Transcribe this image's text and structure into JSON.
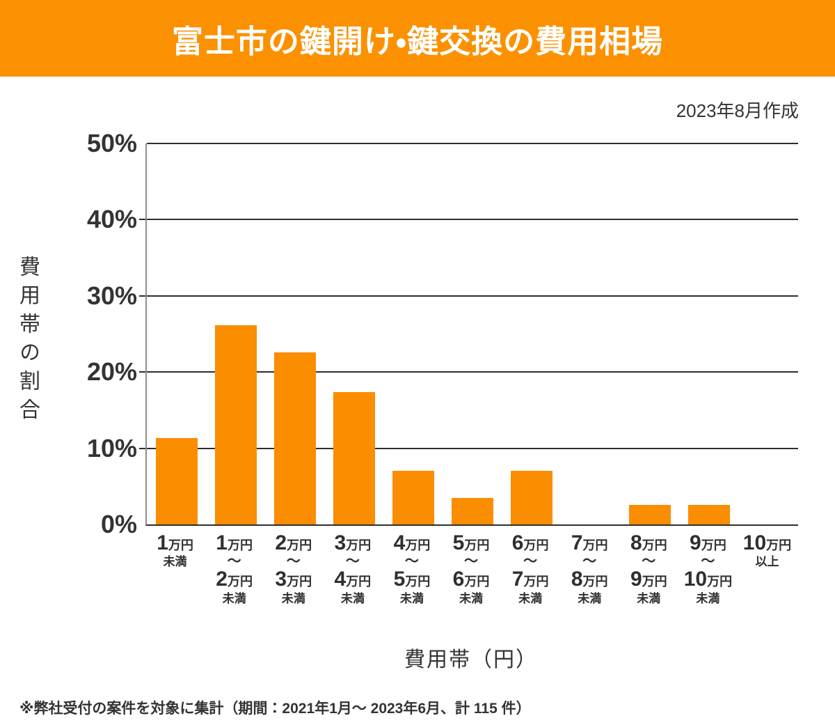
{
  "header": {
    "title": "富士市の鍵開け・鍵交換の費用相場",
    "bg_color": "#fb9100",
    "text_color": "#ffffff"
  },
  "date_note": "2023年8月作成",
  "footnote": "※弊社受付の案件を対象に集計（期間：2021年1月～ 2023年6月、計 115 件）",
  "chart_data": {
    "type": "bar",
    "title": "富士市の鍵開け・鍵交換の費用相場",
    "xlabel": "費用帯（円）",
    "ylabel": "費用帯の割合",
    "ylim": [
      0,
      50
    ],
    "yticks": [
      0,
      10,
      20,
      30,
      40,
      50
    ],
    "ytick_suffix": "%",
    "grid": true,
    "legend": false,
    "bar_color": "#fb8d00",
    "grid_color": "#2e2e2e",
    "axis_color": "#8f8f8f",
    "text_color": "#333333",
    "range_separator": "〜",
    "categories": [
      {
        "from": "1",
        "unit": "万円",
        "to": "",
        "qualifier": "未満"
      },
      {
        "from": "1",
        "unit": "万円",
        "to": "2",
        "qualifier": "未満"
      },
      {
        "from": "2",
        "unit": "万円",
        "to": "3",
        "qualifier": "未満"
      },
      {
        "from": "3",
        "unit": "万円",
        "to": "4",
        "qualifier": "未満"
      },
      {
        "from": "4",
        "unit": "万円",
        "to": "5",
        "qualifier": "未満"
      },
      {
        "from": "5",
        "unit": "万円",
        "to": "6",
        "qualifier": "未満"
      },
      {
        "from": "6",
        "unit": "万円",
        "to": "7",
        "qualifier": "未満"
      },
      {
        "from": "7",
        "unit": "万円",
        "to": "8",
        "qualifier": "未満"
      },
      {
        "from": "8",
        "unit": "万円",
        "to": "9",
        "qualifier": "未満"
      },
      {
        "from": "9",
        "unit": "万円",
        "to": "10",
        "qualifier": "未満"
      },
      {
        "from": "10",
        "unit": "万円",
        "to": "",
        "qualifier": "以上"
      }
    ],
    "values": [
      11.3,
      26.1,
      22.6,
      17.4,
      7.0,
      3.5,
      7.0,
      0,
      2.6,
      2.6,
      0
    ]
  }
}
